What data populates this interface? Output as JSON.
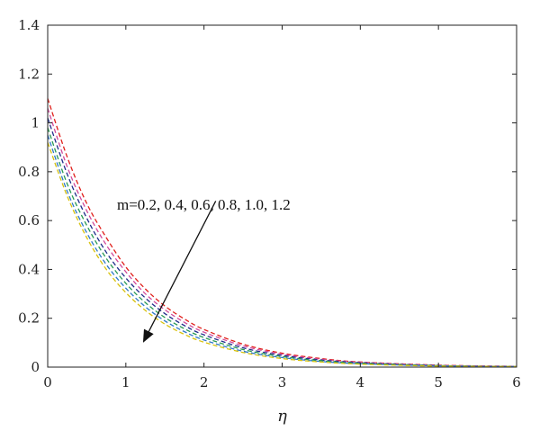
{
  "chart_data": {
    "type": "line",
    "xlabel": "η",
    "ylabel": "",
    "xlim": [
      0,
      6
    ],
    "ylim": [
      0,
      1.4
    ],
    "x_ticks": [
      "0",
      "1",
      "2",
      "3",
      "4",
      "5",
      "6"
    ],
    "y_ticks": [
      "0",
      "0.2",
      "0.4",
      "0.6",
      "0.8",
      "1",
      "1.2",
      "1.4"
    ],
    "grid": false,
    "line_style": "dashed",
    "x": [
      0,
      0.25,
      0.5,
      0.75,
      1,
      1.25,
      1.5,
      1.75,
      2,
      2.5,
      3,
      3.5,
      4,
      5,
      6
    ],
    "series": [
      {
        "color": "#e0201b",
        "values": [
          1.1,
          0.86,
          0.67,
          0.53,
          0.41,
          0.32,
          0.25,
          0.197,
          0.154,
          0.094,
          0.057,
          0.035,
          0.021,
          0.008,
          0.003
        ]
      },
      {
        "color": "#d04a9c",
        "values": [
          1.06,
          0.82,
          0.64,
          0.5,
          0.39,
          0.3,
          0.235,
          0.183,
          0.143,
          0.087,
          0.053,
          0.032,
          0.02,
          0.007,
          0.003
        ]
      },
      {
        "color": "#1f2d8a",
        "values": [
          1.02,
          0.79,
          0.61,
          0.47,
          0.365,
          0.283,
          0.219,
          0.17,
          0.132,
          0.079,
          0.048,
          0.029,
          0.018,
          0.006,
          0.002
        ]
      },
      {
        "color": "#2a9a52",
        "values": [
          0.98,
          0.75,
          0.58,
          0.445,
          0.343,
          0.264,
          0.203,
          0.157,
          0.121,
          0.072,
          0.043,
          0.026,
          0.016,
          0.006,
          0.002
        ]
      },
      {
        "color": "#2f78c8",
        "values": [
          0.95,
          0.72,
          0.55,
          0.42,
          0.323,
          0.247,
          0.189,
          0.145,
          0.111,
          0.065,
          0.039,
          0.023,
          0.014,
          0.005,
          0.002
        ]
      },
      {
        "color": "#d8c20e",
        "values": [
          0.92,
          0.7,
          0.53,
          0.4,
          0.305,
          0.232,
          0.176,
          0.134,
          0.102,
          0.06,
          0.035,
          0.021,
          0.012,
          0.004,
          0.002
        ]
      }
    ],
    "annotation": {
      "text": "m=0.2, 0.4, 0.6, 0.8, 1.0, 1.2",
      "arrow_from": [
        2.15,
        0.68
      ],
      "arrow_to": [
        1.22,
        0.1
      ]
    },
    "colors": {
      "axis": "#222222",
      "arrow": "#111111"
    }
  }
}
